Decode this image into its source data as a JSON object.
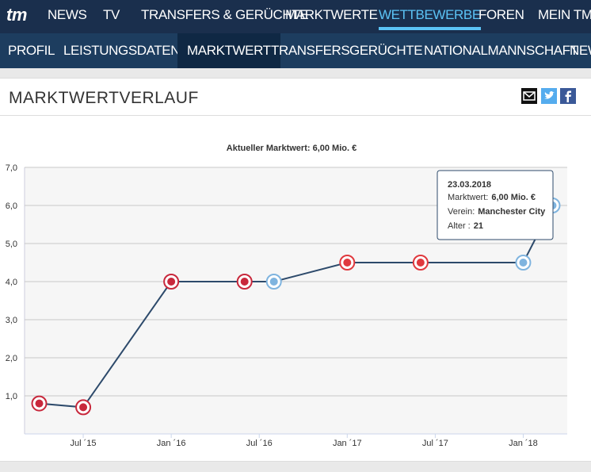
{
  "logo": "tm",
  "nav": {
    "items": [
      "NEWS",
      "TV",
      "TRANSFERS & GERÜCHTE",
      "MARKTWERTE",
      "WETTBEWERBE",
      "FOREN",
      "MEIN TM"
    ]
  },
  "subnav": {
    "items": [
      "PROFIL",
      "LEISTUNGSDATEN",
      "MARKTWERT",
      "TRANSFERS",
      "GERÜCHTE",
      "NATIONALMANNSCHAFT",
      "NEWS"
    ]
  },
  "section": {
    "title": "MARKTWERTVERLAUF"
  },
  "chart_data": {
    "type": "line",
    "title": "Aktueller Marktwert: 6,00 Mio. €",
    "x": [
      "2015-04",
      "2015-07",
      "2016-01",
      "2016-06",
      "2016-08",
      "2017-01",
      "2017-06",
      "2018-01",
      "2018-03"
    ],
    "series": [
      {
        "name": "Marktwert",
        "color": "#2d4a6b",
        "values": [
          0.8,
          0.7,
          4.0,
          4.0,
          4.0,
          4.5,
          4.5,
          4.5,
          6.0
        ]
      }
    ],
    "marker_colors": [
      "#c8283c",
      "#c8283c",
      "#c8283c",
      "#c8283c",
      "#7fb4df",
      "#e0393e",
      "#e0393e",
      "#7fb4df",
      "#7fb4df"
    ],
    "xlim": [
      "2015-03",
      "2018-04"
    ],
    "xticks": [
      {
        "value": "2015-07",
        "label": "Jul ´15"
      },
      {
        "value": "2016-01",
        "label": "Jan ´16"
      },
      {
        "value": "2016-07",
        "label": "Jul ´16"
      },
      {
        "value": "2017-01",
        "label": "Jan ´17"
      },
      {
        "value": "2017-07",
        "label": "Jul ´17"
      },
      {
        "value": "2018-01",
        "label": "Jan ´18"
      }
    ],
    "ylim": [
      0,
      7
    ],
    "yticks": [
      {
        "value": 1,
        "label": "1,0"
      },
      {
        "value": 2,
        "label": "2,0"
      },
      {
        "value": 3,
        "label": "3,0"
      },
      {
        "value": 4,
        "label": "4,0"
      },
      {
        "value": 5,
        "label": "5,0"
      },
      {
        "value": 6,
        "label": "6,0"
      },
      {
        "value": 7,
        "label": "7,0"
      }
    ],
    "grid": true,
    "tooltip": {
      "date": "23.03.2018",
      "rows": [
        [
          "Marktwert:",
          "6,00 Mio. €"
        ],
        [
          "Verein:",
          "Manchester City"
        ],
        [
          "Alter :",
          "21"
        ]
      ]
    }
  }
}
